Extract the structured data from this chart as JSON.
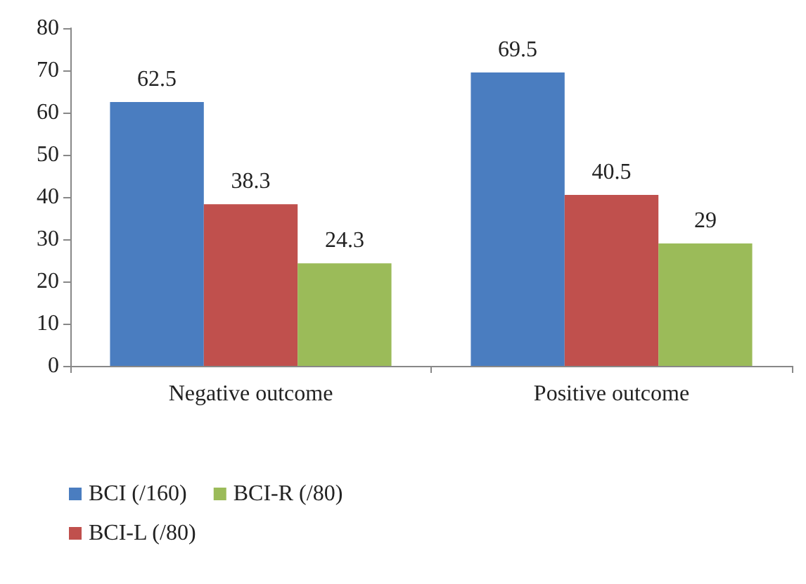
{
  "chart_data": {
    "type": "bar",
    "categories": [
      "Negative outcome",
      "Positive outcome"
    ],
    "series": [
      {
        "name": "BCI (/160)",
        "color": "#4a7dc0",
        "values": [
          62.5,
          69.5
        ]
      },
      {
        "name": "BCI-L (/80)",
        "color": "#c0504d",
        "values": [
          38.3,
          40.5
        ]
      },
      {
        "name": "BCI-R (/80)",
        "color": "#9bbb59",
        "values": [
          24.3,
          29
        ]
      }
    ],
    "ylim": [
      0,
      80
    ],
    "yticks": [
      0,
      10,
      20,
      30,
      40,
      50,
      60,
      70,
      80
    ],
    "grid": false,
    "legend": "bottom left",
    "data_labels": true
  }
}
